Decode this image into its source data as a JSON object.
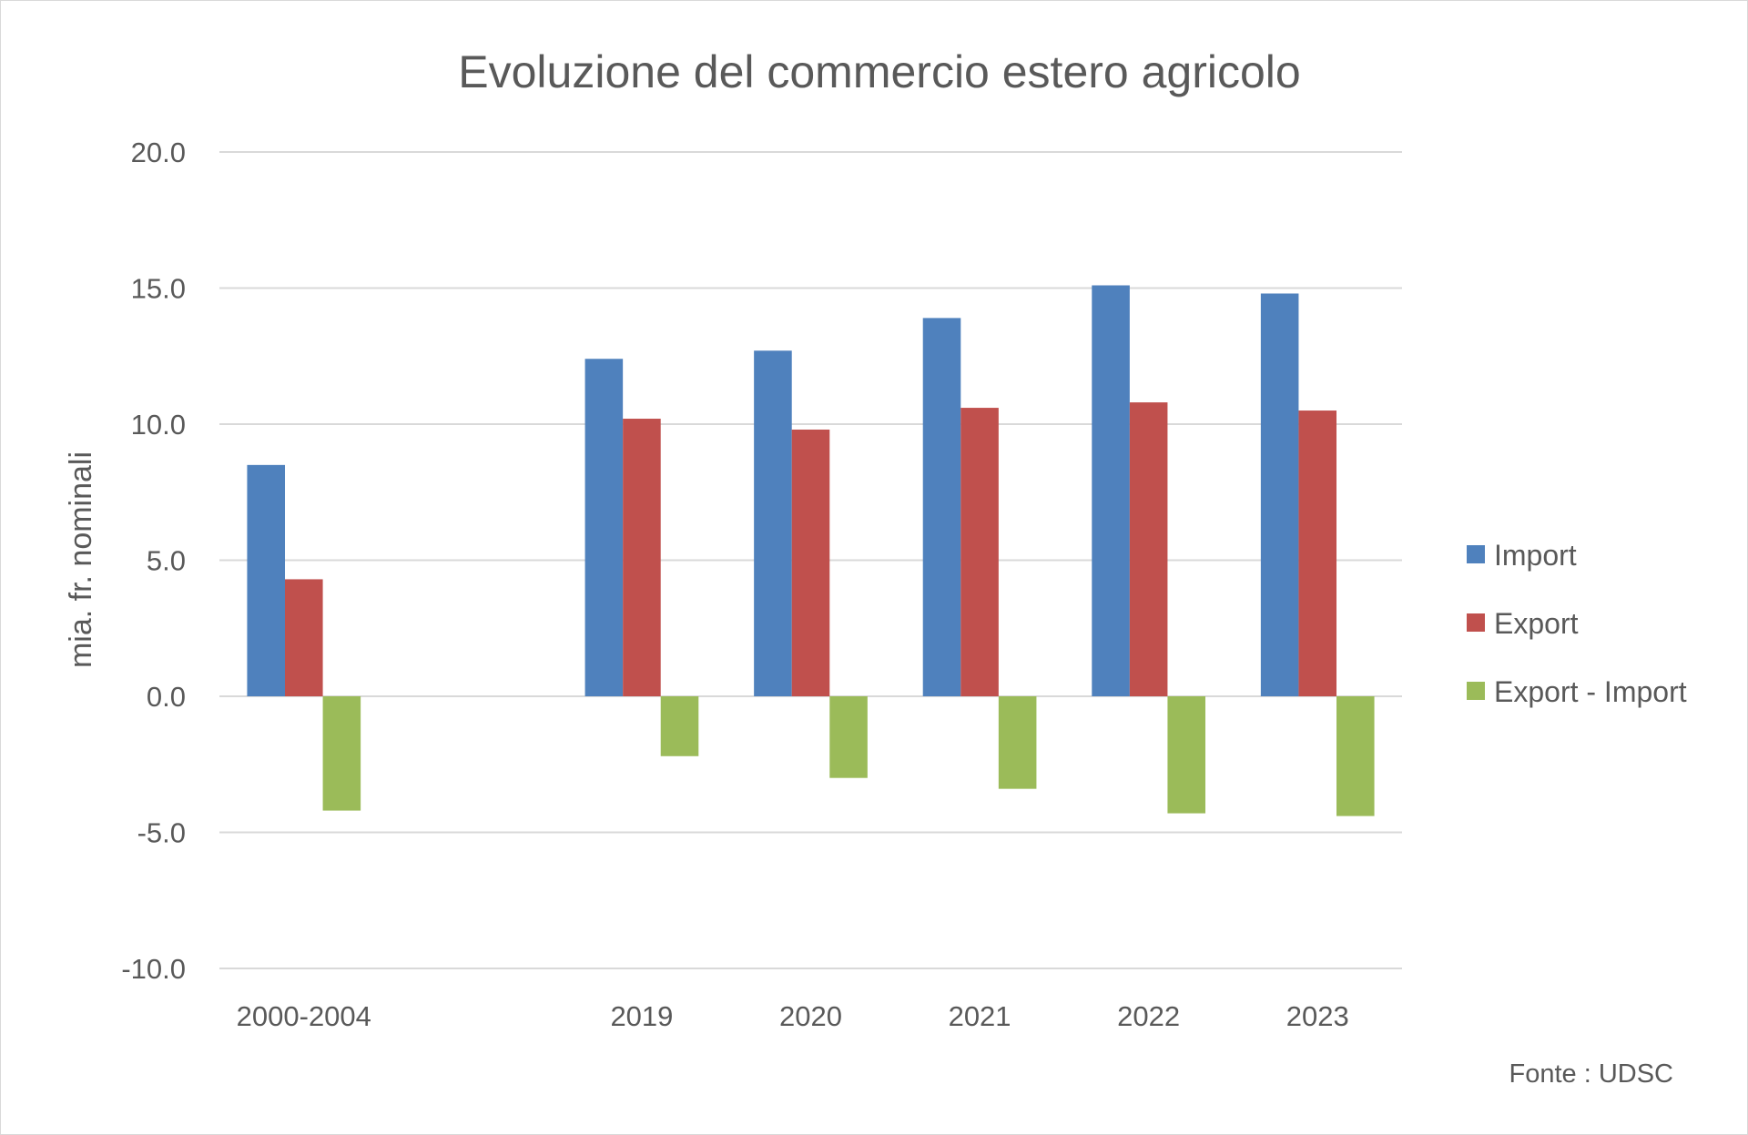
{
  "chart_data": {
    "type": "bar",
    "title": "Evoluzione del commercio estero agricolo",
    "xlabel": "",
    "ylabel": "mia. fr. nominali",
    "ylim": [
      -10,
      20
    ],
    "yticks": [
      20,
      15,
      10,
      5,
      0,
      -5,
      -10
    ],
    "ytick_labels": [
      "20.0",
      "15.0",
      "10.0",
      "5.0",
      "0.0",
      "-5.0",
      "-10.0"
    ],
    "grid": true,
    "legend_position": "right",
    "categories": [
      "2000-2004",
      "",
      "2019",
      "2020",
      "2021",
      "2022",
      "2023"
    ],
    "series": [
      {
        "name": "Import",
        "color": "#4F81BD",
        "values": [
          8.5,
          null,
          12.4,
          12.7,
          13.9,
          15.1,
          14.8
        ]
      },
      {
        "name": "Export",
        "color": "#C0504D",
        "values": [
          4.3,
          null,
          10.2,
          9.8,
          10.6,
          10.8,
          10.5
        ]
      },
      {
        "name": "Export - Import",
        "color": "#9BBB59",
        "values": [
          -4.2,
          null,
          -2.2,
          -3.0,
          -3.4,
          -4.3,
          -4.4
        ]
      }
    ],
    "source": "Fonte : UDSC"
  }
}
